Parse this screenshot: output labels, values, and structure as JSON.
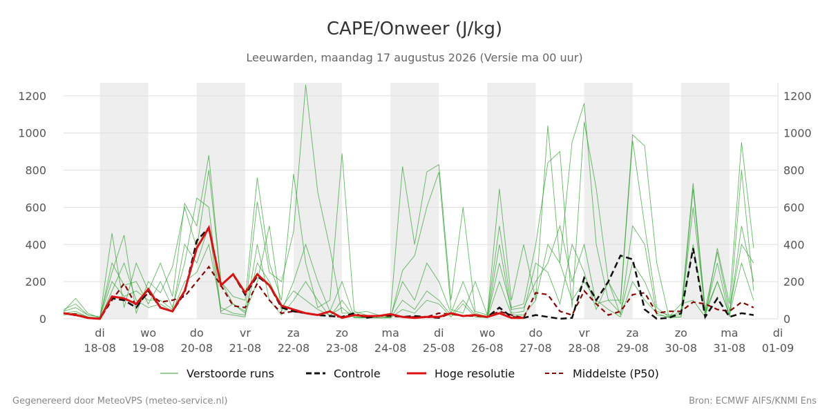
{
  "title": "CAPE/Onweer (J/kg)",
  "subtitle": "Leeuwarden, maandag 17 augustus 2026 (Versie ma 00 uur)",
  "footer_left": "Gegenereerd door MeteoVPS (meteo-service.nl)",
  "footer_right": "Bron: ECMWF AIFS/KNMI Ens",
  "colors": {
    "ensemble": "#2ca02c",
    "control": "#111111",
    "hires": "#dd1111",
    "median": "#8b0000",
    "night_band": "#eeeeee",
    "grid": "#dddddd"
  },
  "legend": [
    {
      "key": "ensemble",
      "label": "Verstoorde runs",
      "style": "thin-solid"
    },
    {
      "key": "control",
      "label": "Controle",
      "style": "dashed"
    },
    {
      "key": "hires",
      "label": "Hoge resolutie",
      "style": "thick-solid"
    },
    {
      "key": "median",
      "label": "Middelste (P50)",
      "style": "dashed"
    }
  ],
  "chart_data": {
    "type": "line",
    "xlabel": "",
    "ylabel": "",
    "ylim": [
      0,
      1270
    ],
    "yticks": [
      0,
      200,
      400,
      600,
      800,
      1000,
      1200
    ],
    "xlim": [
      "2026-08-17T06:00",
      "2026-09-01T00:00"
    ],
    "x_step_hours": 6,
    "x_start": "2026-08-17T06:00",
    "x_ticks": [
      {
        "day": "di",
        "date": "18-08",
        "x": "2026-08-18T00:00"
      },
      {
        "day": "wo",
        "date": "19-08",
        "x": "2026-08-19T00:00"
      },
      {
        "day": "do",
        "date": "20-08",
        "x": "2026-08-20T00:00"
      },
      {
        "day": "vr",
        "date": "21-08",
        "x": "2026-08-21T00:00"
      },
      {
        "day": "za",
        "date": "22-08",
        "x": "2026-08-22T00:00"
      },
      {
        "day": "zo",
        "date": "23-08",
        "x": "2026-08-23T00:00"
      },
      {
        "day": "ma",
        "date": "24-08",
        "x": "2026-08-24T00:00"
      },
      {
        "day": "di",
        "date": "25-08",
        "x": "2026-08-25T00:00"
      },
      {
        "day": "wo",
        "date": "26-08",
        "x": "2026-08-26T00:00"
      },
      {
        "day": "do",
        "date": "27-08",
        "x": "2026-08-27T00:00"
      },
      {
        "day": "vr",
        "date": "28-08",
        "x": "2026-08-28T00:00"
      },
      {
        "day": "za",
        "date": "29-08",
        "x": "2026-08-29T00:00"
      },
      {
        "day": "zo",
        "date": "30-08",
        "x": "2026-08-30T00:00"
      },
      {
        "day": "ma",
        "date": "31-08",
        "x": "2026-08-31T00:00"
      },
      {
        "day": "di",
        "date": "01-09",
        "x": "2026-09-01T00:00"
      }
    ],
    "shaded_periods": [
      [
        "2026-08-18T00:00",
        "2026-08-19T00:00"
      ],
      [
        "2026-08-20T00:00",
        "2026-08-21T00:00"
      ],
      [
        "2026-08-22T00:00",
        "2026-08-23T00:00"
      ],
      [
        "2026-08-24T00:00",
        "2026-08-25T00:00"
      ],
      [
        "2026-08-26T00:00",
        "2026-08-27T00:00"
      ],
      [
        "2026-08-28T00:00",
        "2026-08-29T00:00"
      ],
      [
        "2026-08-30T00:00",
        "2026-08-31T00:00"
      ]
    ],
    "control": [
      30,
      20,
      5,
      0,
      110,
      100,
      60,
      150,
      60,
      40,
      140,
      420,
      490,
      180,
      240,
      130,
      230,
      180,
      60,
      40,
      30,
      20,
      15,
      10,
      30,
      5,
      15,
      20,
      10,
      15,
      10,
      5,
      30,
      15,
      20,
      10,
      60,
      10,
      5,
      20,
      10,
      0,
      5,
      220,
      100,
      200,
      340,
      320,
      50,
      0,
      5,
      30,
      380,
      10,
      110,
      10,
      30,
      20
    ],
    "hires": [
      30,
      20,
      5,
      0,
      120,
      110,
      80,
      160,
      60,
      40,
      150,
      380,
      490,
      180,
      240,
      140,
      240,
      180,
      70,
      50,
      30,
      20,
      40,
      5,
      20,
      15,
      15,
      25,
      10,
      5,
      10,
      10,
      30,
      15,
      20,
      10,
      30,
      5,
      5,
      null,
      null,
      null,
      null,
      null,
      null,
      null,
      null,
      null,
      null,
      null,
      null,
      null,
      null,
      null,
      null,
      null,
      null,
      null
    ],
    "median": [
      30,
      25,
      5,
      0,
      100,
      190,
      70,
      140,
      90,
      100,
      120,
      200,
      280,
      180,
      70,
      60,
      190,
      100,
      30,
      40,
      30,
      20,
      15,
      10,
      20,
      10,
      15,
      15,
      10,
      10,
      10,
      30,
      25,
      15,
      15,
      10,
      40,
      20,
      5,
      140,
      130,
      40,
      20,
      150,
      80,
      20,
      40,
      130,
      140,
      30,
      40,
      40,
      90,
      80,
      50,
      40,
      90,
      60
    ],
    "ensemble": [
      [
        40,
        110,
        30,
        5,
        460,
        60,
        300,
        150,
        300,
        120,
        620,
        500,
        880,
        200,
        120,
        100,
        760,
        300,
        100,
        780,
        300,
        60,
        100,
        890,
        40,
        20,
        10,
        30,
        820,
        400,
        790,
        830,
        100,
        600,
        40,
        20,
        700,
        100,
        400,
        100,
        1040,
        300,
        950,
        1160,
        400,
        100,
        100,
        990,
        930,
        300,
        10,
        80,
        100,
        10,
        380,
        80,
        950,
        380
      ],
      [
        40,
        60,
        20,
        10,
        250,
        450,
        30,
        200,
        140,
        280,
        600,
        380,
        800,
        200,
        80,
        40,
        630,
        250,
        200,
        470,
        1260,
        680,
        380,
        30,
        30,
        40,
        20,
        5,
        260,
        340,
        600,
        790,
        50,
        30,
        200,
        20,
        500,
        60,
        80,
        400,
        840,
        900,
        60,
        1060,
        700,
        200,
        80,
        960,
        500,
        60,
        10,
        40,
        730,
        50,
        360,
        40,
        400,
        300
      ],
      [
        30,
        40,
        10,
        5,
        300,
        180,
        200,
        80,
        200,
        60,
        300,
        650,
        600,
        40,
        80,
        30,
        200,
        500,
        40,
        200,
        400,
        200,
        40,
        200,
        10,
        10,
        5,
        10,
        200,
        100,
        300,
        200,
        30,
        200,
        30,
        10,
        300,
        50,
        60,
        200,
        300,
        500,
        200,
        400,
        80,
        100,
        30,
        300,
        200,
        40,
        20,
        20,
        600,
        40,
        200,
        20,
        500,
        200
      ],
      [
        50,
        80,
        20,
        10,
        200,
        120,
        150,
        100,
        100,
        50,
        400,
        300,
        500,
        30,
        20,
        10,
        400,
        100,
        20,
        100,
        200,
        100,
        10,
        100,
        10,
        5,
        5,
        5,
        100,
        50,
        150,
        100,
        20,
        100,
        20,
        5,
        400,
        30,
        40,
        300,
        250,
        80,
        400,
        250,
        50,
        200,
        20,
        500,
        400,
        20,
        10,
        10,
        700,
        30,
        300,
        10,
        800,
        150
      ],
      [
        20,
        30,
        10,
        0,
        150,
        300,
        100,
        60,
        80,
        40,
        200,
        250,
        400,
        60,
        30,
        20,
        300,
        200,
        60,
        150,
        100,
        50,
        20,
        60,
        5,
        5,
        5,
        5,
        50,
        30,
        100,
        80,
        10,
        80,
        10,
        5,
        200,
        20,
        20,
        100,
        400,
        300,
        100,
        200,
        100,
        50,
        10,
        200,
        100,
        30,
        5,
        10,
        400,
        20,
        200,
        20,
        300,
        100
      ]
    ]
  }
}
